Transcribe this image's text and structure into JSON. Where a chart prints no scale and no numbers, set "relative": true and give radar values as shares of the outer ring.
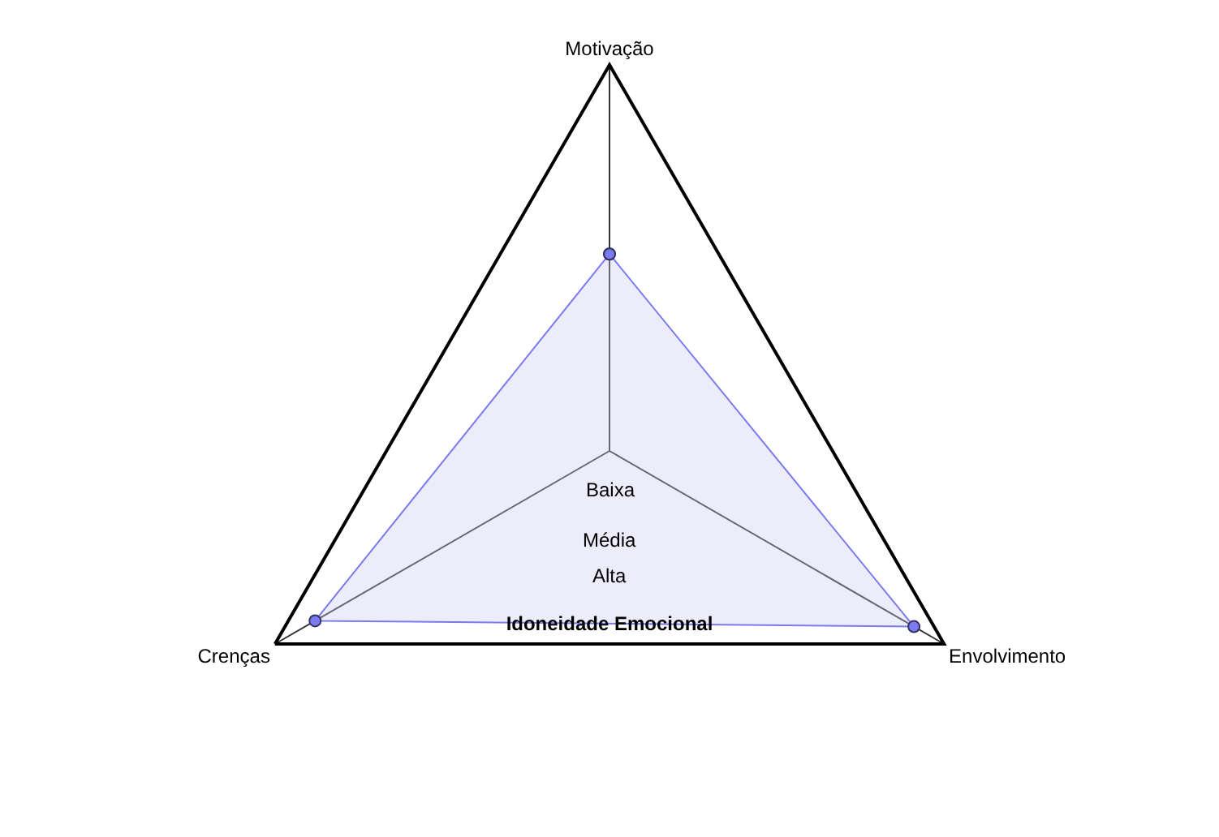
{
  "chart_data": {
    "type": "radar",
    "title": "Idoneidade Emocional",
    "relative": true,
    "marker": "circle",
    "categories": [
      "Motivação",
      "Envolvimento",
      "Crenças"
    ],
    "series": [
      {
        "color": "#7b7bef",
        "values": [
          0.51,
          0.91,
          0.88
        ]
      }
    ],
    "annotations": [
      "Baixa",
      "Média",
      "Alta"
    ]
  }
}
